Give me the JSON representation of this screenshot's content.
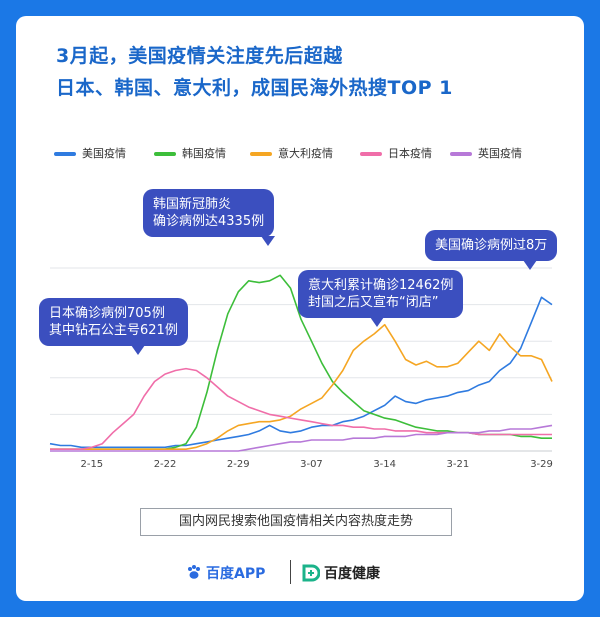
{
  "title_line1": "3月起，美国疫情关注度先后超越",
  "title_line2": "日本、韩国、意大利，成国民海外热搜TOP 1",
  "subtitle": "国内网民搜索他国疫情相关内容热度走势",
  "annotations": {
    "japan": [
      "日本确诊病例705例",
      "其中钻石公主号621例"
    ],
    "korea": [
      "韩国新冠肺炎",
      "确诊病例达4335例"
    ],
    "italy": [
      "意大利累计确诊12462例",
      "封国之后又宣布“闭店”"
    ],
    "usa": [
      "美国确诊病例过8万"
    ]
  },
  "footer": {
    "brand1": "百度APP",
    "brand2": "百度健康"
  },
  "colors": {
    "background": "#1B78E6",
    "title": "#1A67C9",
    "bubble": "#3B4FBF"
  },
  "chart_data": {
    "type": "line",
    "x": [
      "2-11",
      "2-12",
      "2-13",
      "2-14",
      "2-15",
      "2-16",
      "2-17",
      "2-18",
      "2-19",
      "2-20",
      "2-21",
      "2-22",
      "2-23",
      "2-24",
      "2-25",
      "2-26",
      "2-27",
      "2-28",
      "2-29",
      "3-01",
      "3-02",
      "3-03",
      "3-04",
      "3-05",
      "3-06",
      "3-07",
      "3-08",
      "3-09",
      "3-10",
      "3-11",
      "3-12",
      "3-13",
      "3-14",
      "3-15",
      "3-16",
      "3-17",
      "3-18",
      "3-19",
      "3-20",
      "3-21",
      "3-22",
      "3-23",
      "3-24",
      "3-25",
      "3-26",
      "3-27",
      "3-28",
      "3-29",
      "3-30"
    ],
    "xticks": [
      "2-15",
      "2-22",
      "2-29",
      "3-07",
      "3-14",
      "3-21",
      "3-29"
    ],
    "grid": true,
    "legend_position": "top",
    "ylim": [
      0,
      100
    ],
    "series": [
      {
        "name": "美国疫情",
        "color": "#2F7BE0",
        "values": [
          4,
          3,
          3,
          2,
          2,
          2,
          2,
          2,
          2,
          2,
          2,
          2,
          3,
          3,
          4,
          5,
          6,
          7,
          8,
          9,
          11,
          14,
          11,
          10,
          11,
          13,
          14,
          14,
          16,
          17,
          19,
          22,
          25,
          30,
          27,
          26,
          28,
          29,
          30,
          32,
          33,
          36,
          38,
          44,
          48,
          56,
          70,
          84,
          80
        ]
      },
      {
        "name": "韩国疫情",
        "color": "#3DBE3A",
        "values": [
          1,
          1,
          1,
          1,
          1,
          1,
          1,
          1,
          1,
          1,
          1,
          1,
          2,
          4,
          13,
          32,
          55,
          75,
          87,
          93,
          92,
          93,
          96,
          89,
          72,
          60,
          48,
          38,
          32,
          27,
          22,
          20,
          18,
          17,
          15,
          13,
          12,
          11,
          11,
          10,
          10,
          9,
          9,
          9,
          9,
          8,
          8,
          7,
          7
        ]
      },
      {
        "name": "意大利疫情",
        "color": "#F5A623",
        "values": [
          1,
          1,
          1,
          1,
          1,
          1,
          1,
          1,
          1,
          1,
          1,
          1,
          1,
          1,
          2,
          4,
          7,
          11,
          14,
          15,
          16,
          16,
          17,
          19,
          23,
          26,
          29,
          36,
          44,
          55,
          60,
          64,
          69,
          60,
          50,
          47,
          49,
          46,
          46,
          48,
          54,
          60,
          55,
          64,
          57,
          52,
          52,
          50,
          38
        ]
      },
      {
        "name": "日本疫情",
        "color": "#F06EA9",
        "values": [
          1,
          1,
          1,
          1,
          2,
          4,
          10,
          15,
          20,
          30,
          38,
          42,
          44,
          45,
          44,
          40,
          35,
          30,
          27,
          24,
          22,
          20,
          19,
          18,
          17,
          16,
          15,
          14,
          14,
          13,
          13,
          12,
          12,
          11,
          11,
          11,
          10,
          10,
          10,
          10,
          10,
          9,
          9,
          9,
          9,
          9,
          9,
          9,
          9
        ]
      },
      {
        "name": "英国疫情",
        "color": "#B779D8",
        "values": [
          0,
          0,
          0,
          0,
          0,
          0,
          0,
          0,
          0,
          0,
          0,
          0,
          0,
          0,
          0,
          0,
          0,
          0,
          0,
          1,
          2,
          3,
          4,
          5,
          5,
          6,
          6,
          6,
          6,
          7,
          7,
          7,
          8,
          8,
          8,
          9,
          9,
          9,
          10,
          10,
          10,
          10,
          11,
          11,
          12,
          12,
          12,
          13,
          14
        ]
      }
    ]
  }
}
